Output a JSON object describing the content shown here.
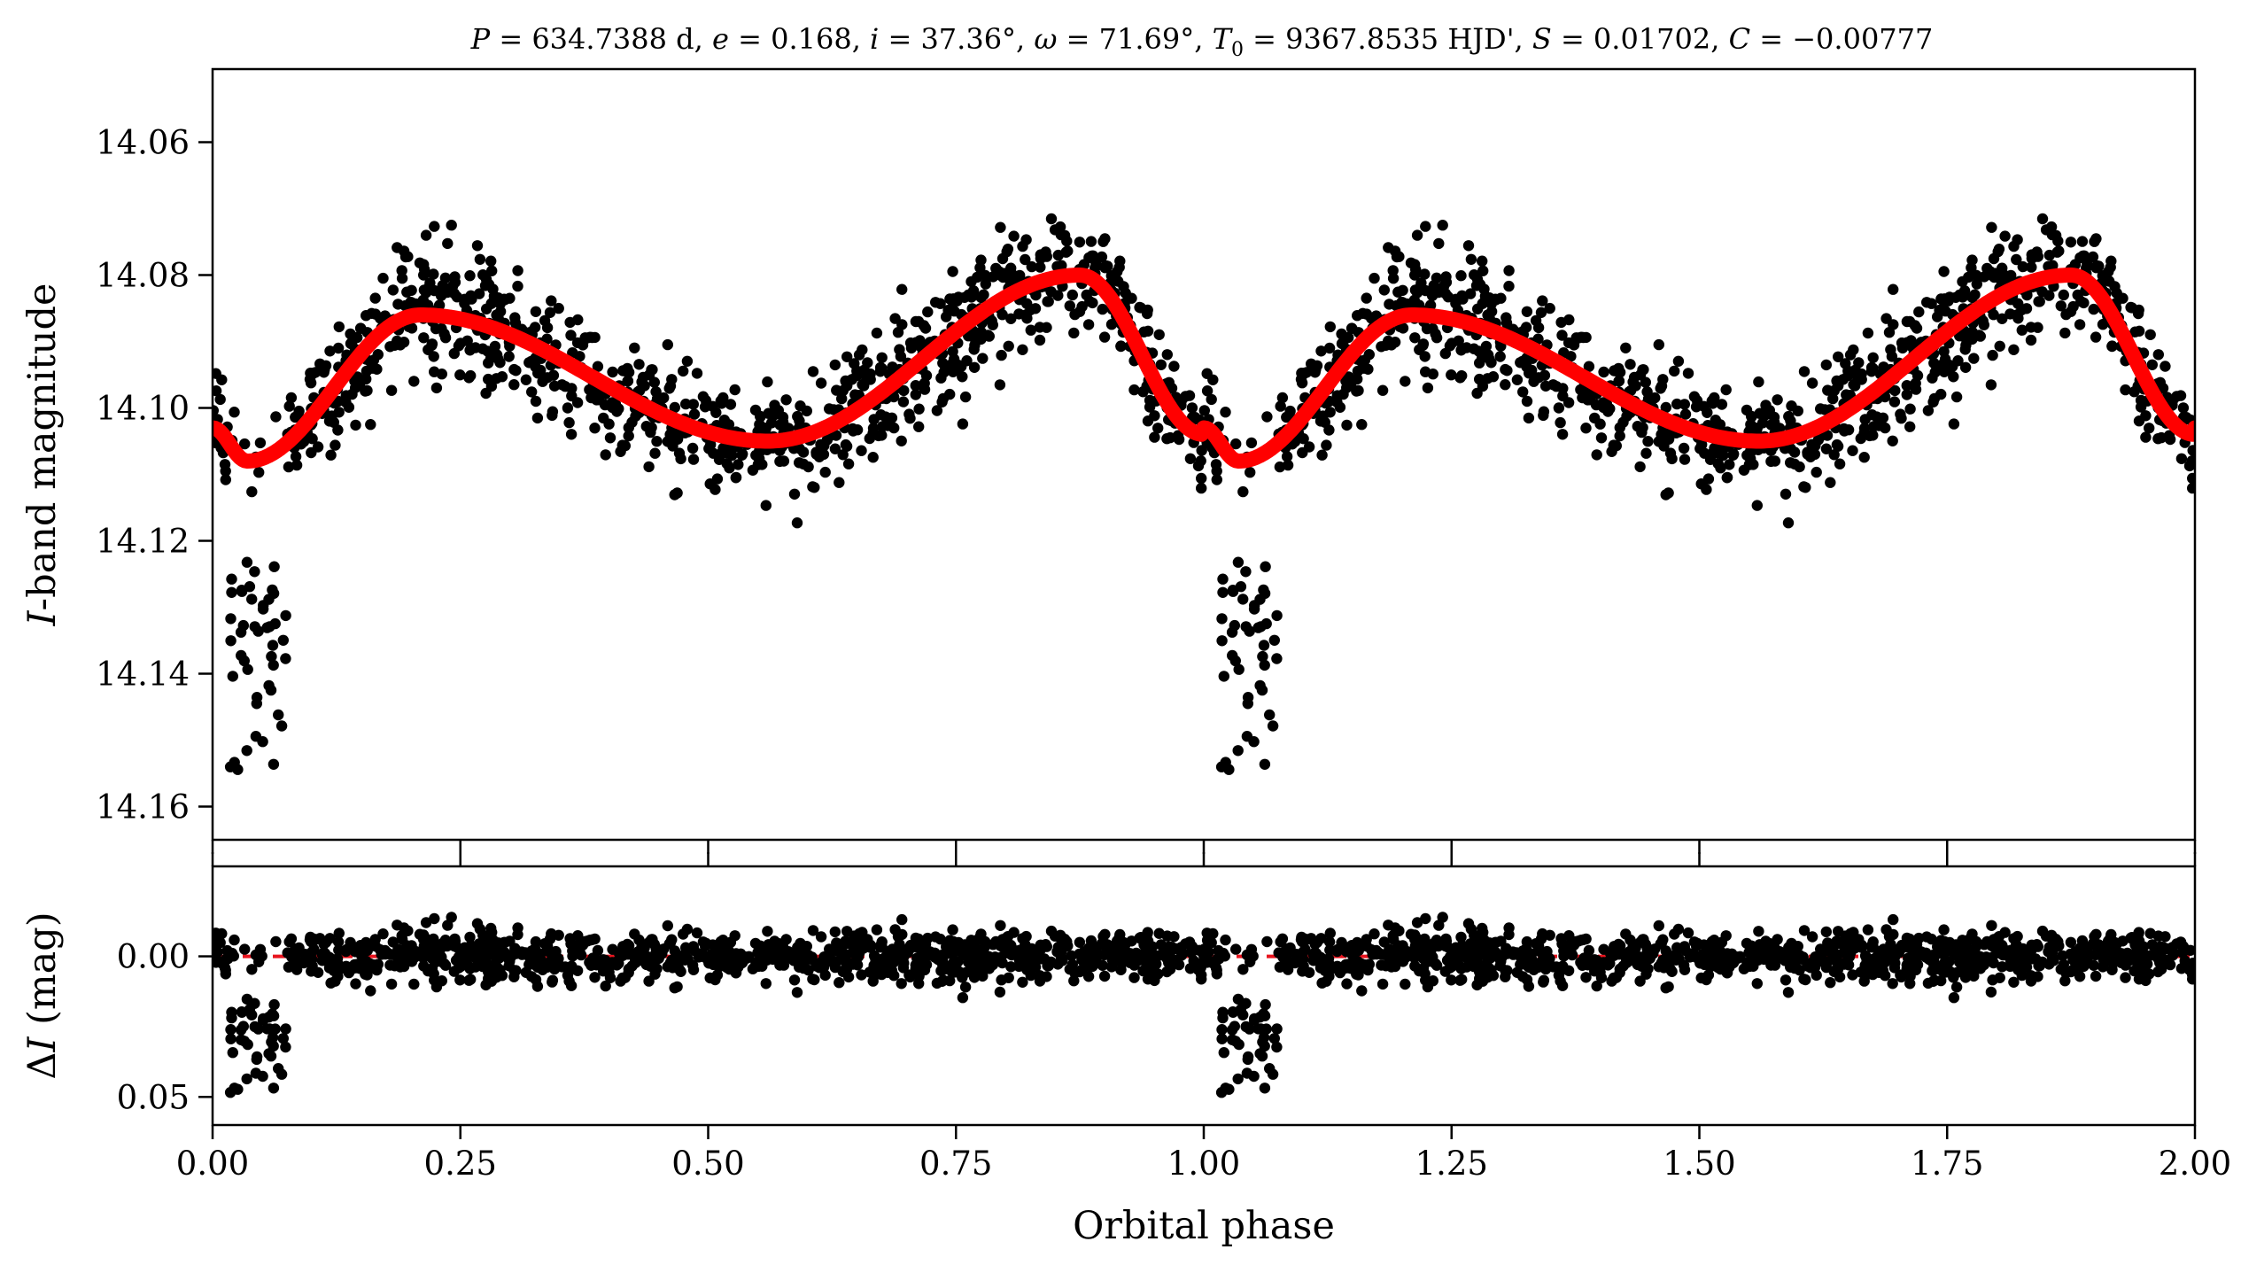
{
  "chart_data": {
    "type": "scatter",
    "title": "P = 634.7388 d, e = 0.168, i = 37.36°, ω = 71.69°, T0 = 9367.8535 HJD', S = 0.01702, C = −0.00777",
    "orbit_parameters": {
      "P_days": 634.7388,
      "e": 0.168,
      "i_deg": 37.36,
      "omega_deg": 71.69,
      "T0_HJD": 9367.8535,
      "S": 0.01702,
      "C": -0.00777
    },
    "colors": {
      "points": "#000000",
      "model": "#ff0000",
      "zero_line": "#e8141e"
    },
    "top_panel": {
      "ylabel": "I-band magnitude",
      "ylim": [
        14.049,
        14.165
      ],
      "y_inverted": true,
      "yticks": [
        14.06,
        14.08,
        14.1,
        14.12,
        14.14,
        14.16
      ],
      "ytick_labels": [
        "14.06",
        "14.08",
        "14.10",
        "14.12",
        "14.14",
        "14.16"
      ],
      "series": [
        {
          "name": "observed I-band magnitudes",
          "kind": "points",
          "n_points_per_cycle": 1050
        },
        {
          "name": "ellipsoidal + reflection model",
          "kind": "line",
          "key_points_x": [
            0.0,
            0.035,
            0.21,
            0.56,
            0.875,
            1.0
          ],
          "key_points_y": [
            14.103,
            14.108,
            14.086,
            14.105,
            14.08,
            14.104
          ]
        }
      ],
      "eclipse": {
        "phase_range": [
          0.015,
          0.075
        ],
        "mag_range": [
          14.123,
          14.155
        ]
      }
    },
    "bottom_panel": {
      "ylabel": "ΔI (mag)",
      "ylim": [
        -0.032,
        0.06
      ],
      "y_inverted": true,
      "yticks": [
        0.0,
        0.05
      ],
      "ytick_labels": [
        "0.00",
        "0.05"
      ],
      "zero_line": 0.0,
      "series": [
        {
          "name": "residuals",
          "kind": "points"
        }
      ]
    },
    "x": {
      "xlabel": "Orbital phase",
      "xlim": [
        0.0,
        2.0
      ],
      "xticks": [
        0.0,
        0.25,
        0.5,
        0.75,
        1.0,
        1.25,
        1.5,
        1.75,
        2.0
      ],
      "xtick_labels": [
        "0.00",
        "0.25",
        "0.50",
        "0.75",
        "1.00",
        "1.25",
        "1.50",
        "1.75",
        "2.00"
      ]
    }
  }
}
